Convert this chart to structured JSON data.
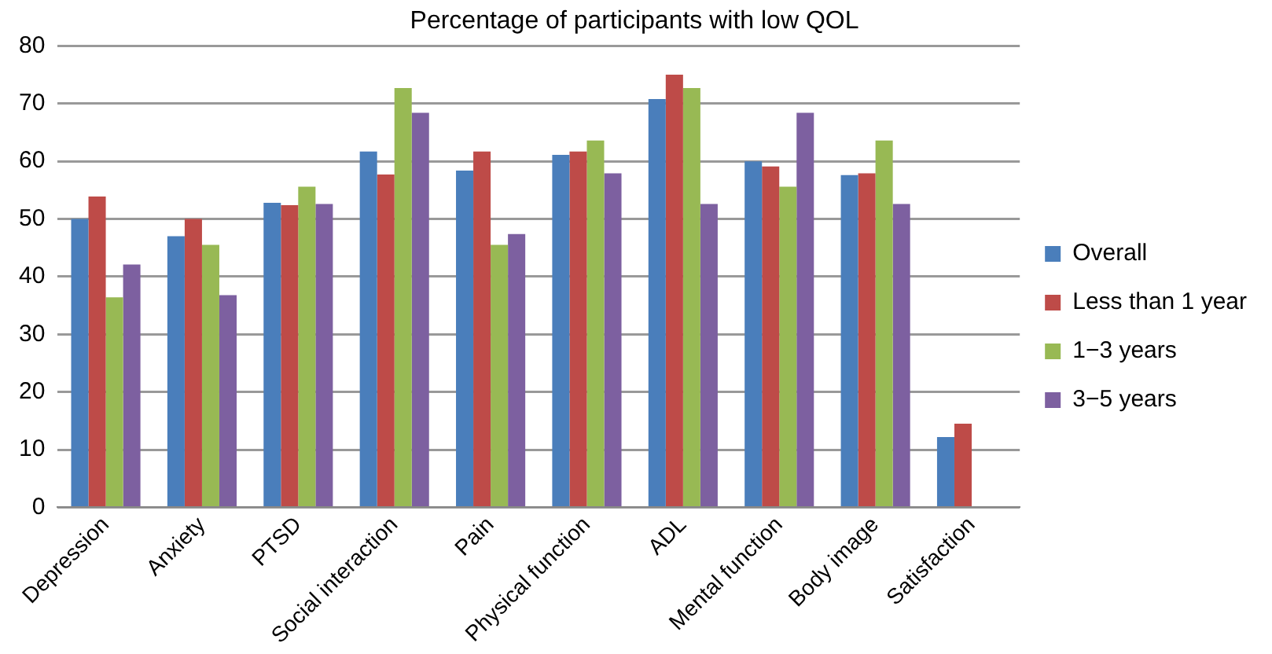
{
  "chart_data": {
    "type": "bar",
    "title": "Percentage of participants with low QOL",
    "categories": [
      "Depression",
      "Anxiety",
      "PTSD",
      "Social interaction",
      "Pain",
      "Physical function",
      "ADL",
      "Mental function",
      "Body image",
      "Satisfaction"
    ],
    "series": [
      {
        "name": "Overall",
        "color": "#4a7ebb",
        "values": [
          50,
          47,
          52.8,
          61.7,
          58.4,
          61.1,
          70.8,
          60,
          57.6,
          12.2
        ]
      },
      {
        "name": "Less than 1 year",
        "color": "#be4b48",
        "values": [
          53.9,
          50,
          52.4,
          57.7,
          61.7,
          61.7,
          75,
          59.1,
          57.9,
          14.5
        ]
      },
      {
        "name": "1−3 years",
        "color": "#98b954",
        "values": [
          36.4,
          45.5,
          55.6,
          72.7,
          45.5,
          63.6,
          72.7,
          55.6,
          63.6,
          null
        ]
      },
      {
        "name": "3−5 years",
        "color": "#7d60a0",
        "values": [
          42.1,
          36.8,
          52.6,
          68.4,
          47.4,
          57.9,
          52.6,
          68.4,
          52.6,
          null
        ]
      }
    ],
    "ylim": [
      0,
      80
    ],
    "yticks": [
      0,
      10,
      20,
      30,
      40,
      50,
      60,
      70,
      80
    ],
    "grid": "y",
    "legend": "right"
  }
}
